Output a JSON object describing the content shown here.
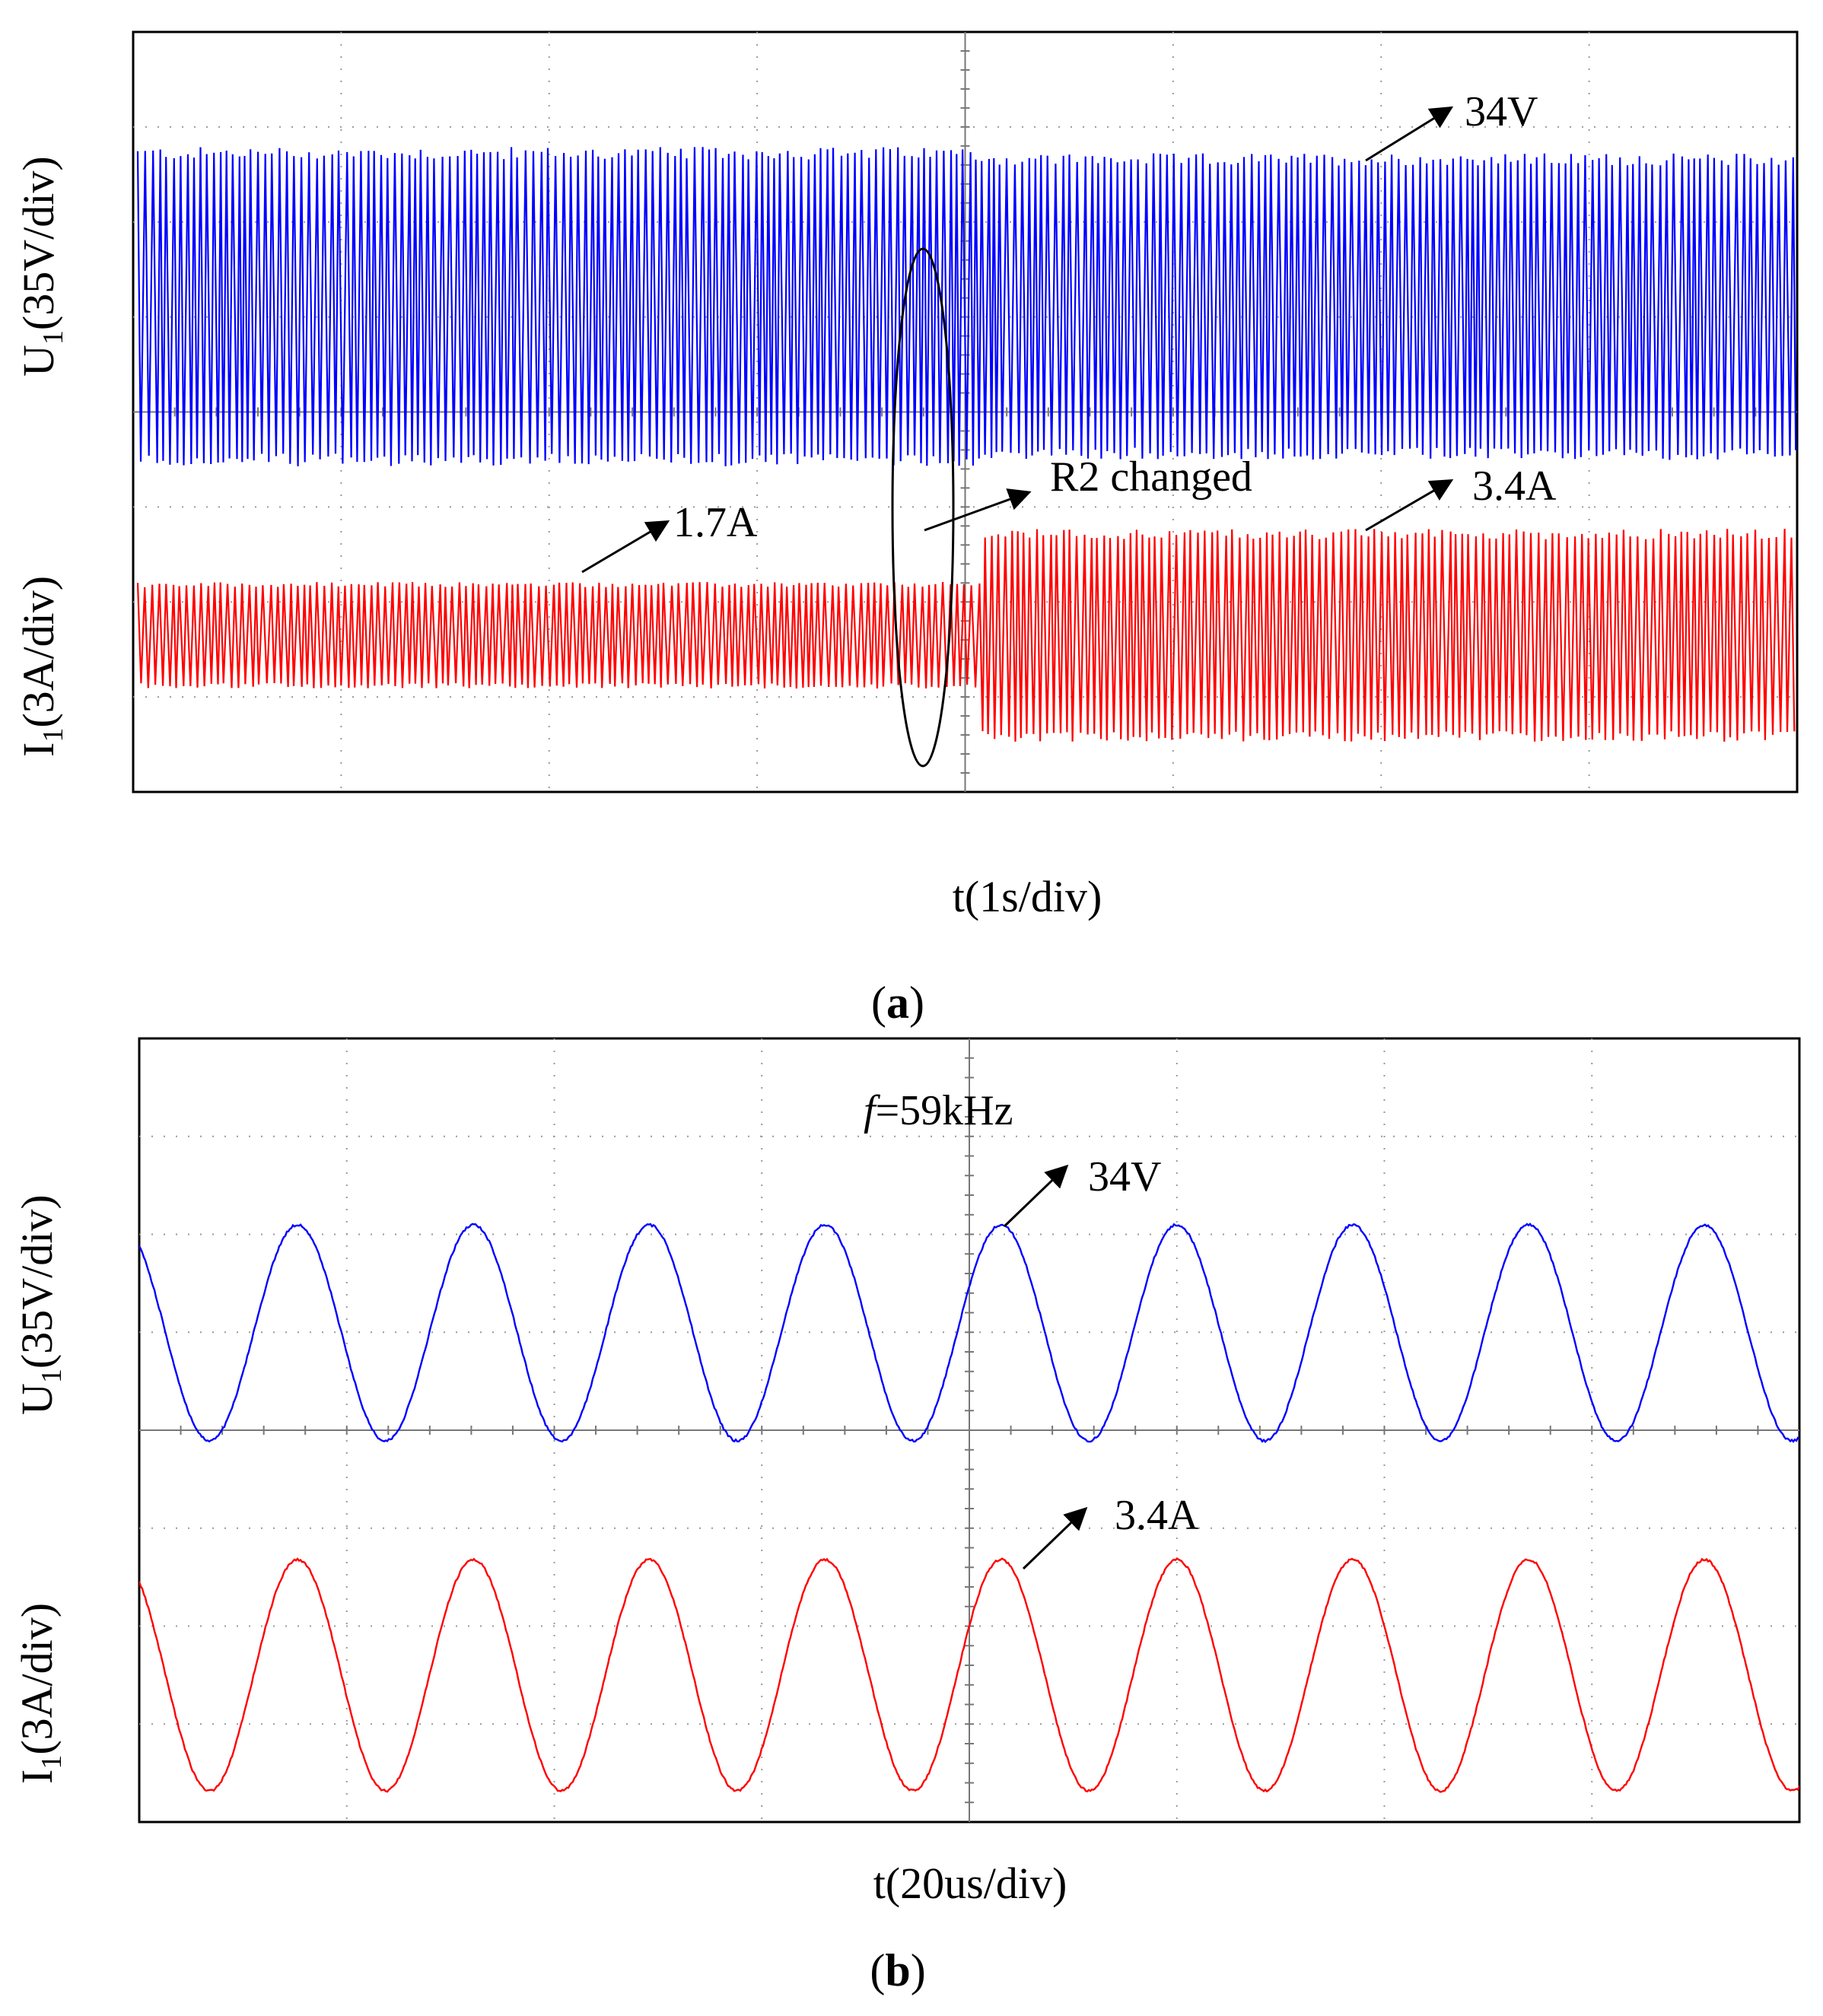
{
  "chart_data": [
    {
      "type": "line",
      "caption_letter": "a",
      "xlabel": "t(1s/div)",
      "ylabels": [
        {
          "main": "U",
          "sub": "1",
          "rest": "(35V/div)"
        },
        {
          "main": "I",
          "sub": "1",
          "rest": "(3A/div)"
        }
      ],
      "grid": true,
      "grid_divisions": {
        "x": 8,
        "y": 8
      },
      "series": [
        {
          "name": "U1",
          "color": "#0000ff",
          "amplitude_before": 34,
          "amplitude_after": 34,
          "unit": "V"
        },
        {
          "name": "I1",
          "color": "#ff0000",
          "amplitude_before": 1.7,
          "amplitude_after": 3.4,
          "unit": "A"
        }
      ],
      "event": {
        "label": "R2 changed",
        "time_div": 3.6
      },
      "annotations": [
        "34V",
        "1.7A",
        "R2 changed",
        "3.4A"
      ]
    },
    {
      "type": "line",
      "caption_letter": "b",
      "xlabel": "t(20us/div)",
      "ylabels": [
        {
          "main": "U",
          "sub": "1",
          "rest": "(35V/div)"
        },
        {
          "main": "I",
          "sub": "1",
          "rest": "(3A/div)"
        }
      ],
      "grid": true,
      "grid_divisions": {
        "x": 8,
        "y": 8
      },
      "frequency": {
        "symbol": "f",
        "text": "=59kHz",
        "value_khz": 59
      },
      "series": [
        {
          "name": "U1",
          "color": "#0000ff",
          "amplitude": 34,
          "unit": "V"
        },
        {
          "name": "I1",
          "color": "#ff0000",
          "amplitude": 3.4,
          "unit": "A"
        }
      ],
      "annotations": [
        "34V",
        "3.4A"
      ]
    }
  ]
}
